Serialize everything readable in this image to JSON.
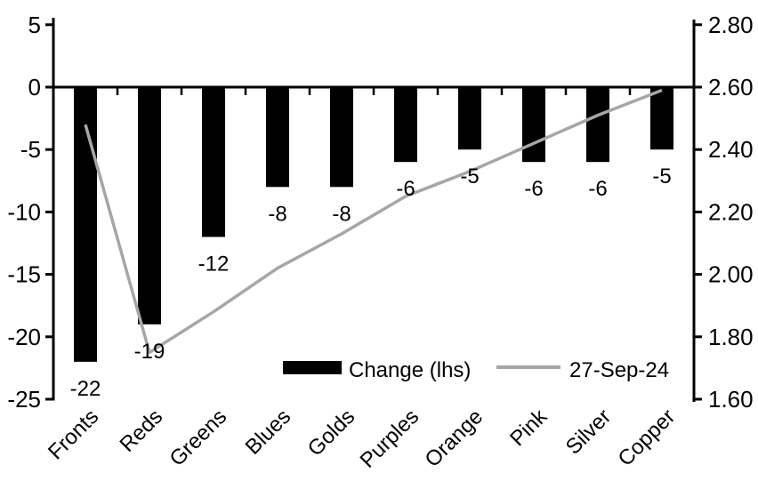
{
  "chart_data": {
    "type": "bar",
    "subtype": "bar-line-combo",
    "categories": [
      "Fronts",
      "Reds",
      "Greens",
      "Blues",
      "Golds",
      "Purples",
      "Orange",
      "Pink",
      "Silver",
      "Copper"
    ],
    "series": [
      {
        "name": "Change (lhs)",
        "type": "bar",
        "axis": "left",
        "color": "#000000",
        "values": [
          -22,
          -19,
          -12,
          -8,
          -8,
          -6,
          -5,
          -6,
          -6,
          -5
        ],
        "data_labels": [
          "-22",
          "-19",
          "-12",
          "-8",
          "-8",
          "-6",
          "-5",
          "-6",
          "-6",
          "-5"
        ]
      },
      {
        "name": "27-Sep-24",
        "type": "line",
        "axis": "right",
        "color": "#a6a6a6",
        "values": [
          2.48,
          1.75,
          1.88,
          2.02,
          2.13,
          2.25,
          2.33,
          2.42,
          2.51,
          2.59
        ]
      }
    ],
    "left_axis": {
      "min": -25,
      "max": 5,
      "ticks": [
        "5",
        "0",
        "-5",
        "-10",
        "-15",
        "-20",
        "-25"
      ]
    },
    "right_axis": {
      "min": 1.6,
      "max": 2.8,
      "ticks": [
        "2.80",
        "2.60",
        "2.40",
        "2.20",
        "2.00",
        "1.80",
        "1.60"
      ]
    },
    "legend": {
      "position": "bottom-inside",
      "entries": [
        "Change (lhs)",
        "27-Sep-24"
      ]
    },
    "title": "",
    "grid": false
  },
  "colors": {
    "background": "#ffffff",
    "axis": "#000000",
    "bar": "#000000",
    "line": "#a6a6a6",
    "text": "#000000"
  }
}
